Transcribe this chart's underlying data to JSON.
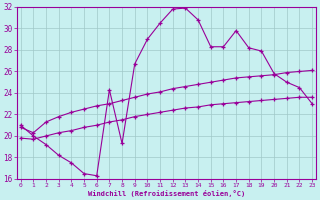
{
  "xlabel": "Windchill (Refroidissement éolien,°C)",
  "ylabel": "",
  "bg_color": "#c8f0f0",
  "line_color": "#990099",
  "grid_color": "#a0c8c8",
  "xmin": 0,
  "xmax": 23,
  "ymin": 16,
  "ymax": 32,
  "xticks": [
    0,
    1,
    2,
    3,
    4,
    5,
    6,
    7,
    8,
    9,
    10,
    11,
    12,
    13,
    14,
    15,
    16,
    17,
    18,
    19,
    20,
    21,
    22,
    23
  ],
  "yticks": [
    16,
    18,
    20,
    22,
    24,
    26,
    28,
    30,
    32
  ],
  "curve1_x": [
    0,
    1,
    2,
    3,
    4,
    5,
    6,
    7,
    8,
    9,
    10,
    11,
    12,
    13,
    14,
    15,
    16,
    17,
    18,
    19,
    20,
    21,
    22,
    23
  ],
  "curve1_y": [
    21.0,
    20.0,
    19.2,
    18.2,
    17.5,
    16.5,
    16.3,
    24.3,
    19.3,
    26.7,
    29.0,
    30.5,
    31.8,
    31.9,
    30.8,
    28.3,
    28.3,
    29.8,
    28.2,
    27.9,
    25.8,
    25.0,
    24.5,
    23.0
  ],
  "curve2_x": [
    0,
    1,
    2,
    3,
    4,
    5,
    6,
    7,
    8,
    9,
    10,
    11,
    12,
    13,
    14,
    15,
    16,
    17,
    18,
    19,
    20,
    21,
    22,
    23
  ],
  "curve2_y": [
    20.8,
    20.3,
    21.3,
    21.8,
    22.2,
    22.5,
    22.8,
    23.0,
    23.3,
    23.6,
    23.9,
    24.1,
    24.4,
    24.6,
    24.8,
    25.0,
    25.2,
    25.4,
    25.5,
    25.6,
    25.7,
    25.9,
    26.0,
    26.1
  ],
  "curve3_x": [
    0,
    1,
    2,
    3,
    4,
    5,
    6,
    7,
    8,
    9,
    10,
    11,
    12,
    13,
    14,
    15,
    16,
    17,
    18,
    19,
    20,
    21,
    22,
    23
  ],
  "curve3_y": [
    19.8,
    19.7,
    20.0,
    20.3,
    20.5,
    20.8,
    21.0,
    21.3,
    21.5,
    21.8,
    22.0,
    22.2,
    22.4,
    22.6,
    22.7,
    22.9,
    23.0,
    23.1,
    23.2,
    23.3,
    23.4,
    23.5,
    23.6,
    23.6
  ]
}
